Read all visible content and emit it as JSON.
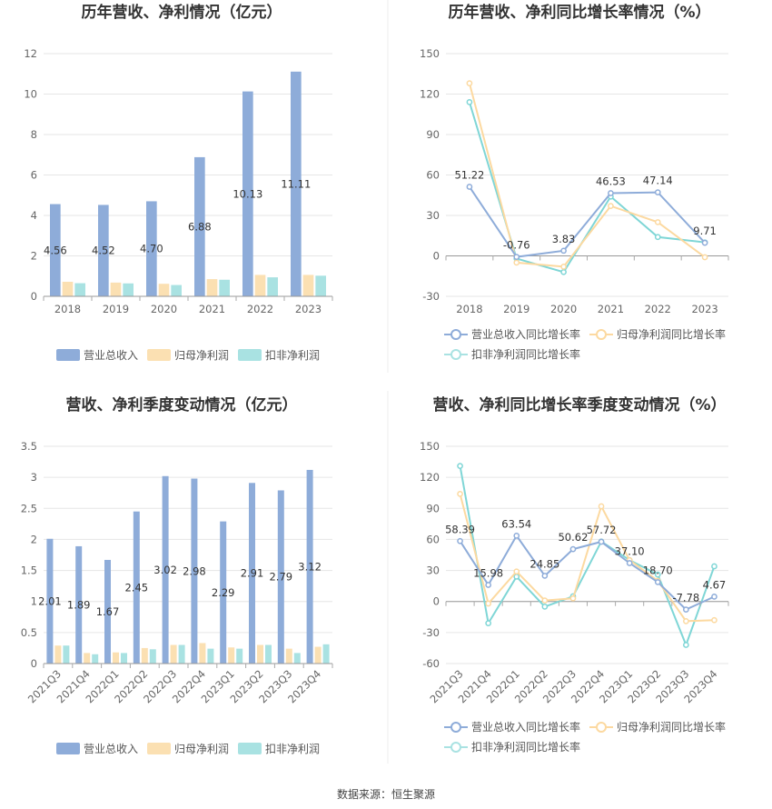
{
  "colors": {
    "revenue": "#8eacd9",
    "net_profit": "#fbe0b2",
    "deducted": "#a9e2e2",
    "revenue_line": "#8eacd9",
    "net_line": "#fcd9a0",
    "deducted_line": "#7fd6d6"
  },
  "legend": {
    "revenue": "营业总收入",
    "net_profit": "归母净利润",
    "deducted": "扣非净利润",
    "revenue_growth": "营业总收入同比增长率",
    "net_growth": "归母净利润同比增长率",
    "deducted_growth": "扣非净利润同比增长率"
  },
  "footer": {
    "source": "数据来源：恒生聚源"
  },
  "chart_data": [
    {
      "id": "annual-amount",
      "type": "bar",
      "title": "历年营收、净利情况（亿元）",
      "categories": [
        "2018",
        "2019",
        "2020",
        "2021",
        "2022",
        "2023"
      ],
      "ylim": [
        0,
        12
      ],
      "yticks": [
        0,
        2,
        4,
        6,
        8,
        10,
        12
      ],
      "series": [
        {
          "name": "营业总收入",
          "values": [
            4.56,
            4.52,
            4.7,
            6.88,
            10.13,
            11.11
          ],
          "labels": [
            "4.56",
            "4.52",
            "4.70",
            "6.88",
            "10.13",
            "11.11"
          ]
        },
        {
          "name": "归母净利润",
          "values": [
            0.72,
            0.68,
            0.62,
            0.85,
            1.06,
            1.06
          ]
        },
        {
          "name": "扣非净利润",
          "values": [
            0.65,
            0.64,
            0.56,
            0.82,
            0.94,
            1.02
          ]
        }
      ],
      "legend_position": "bottom"
    },
    {
      "id": "annual-growth",
      "type": "line",
      "title": "历年营收、净利同比增长率情况（%）",
      "categories": [
        "2018",
        "2019",
        "2020",
        "2021",
        "2022",
        "2023"
      ],
      "ylim": [
        -30,
        150
      ],
      "yticks": [
        -30,
        0,
        30,
        60,
        90,
        120,
        150
      ],
      "series": [
        {
          "name": "营业总收入同比增长率",
          "values": [
            51.22,
            -0.76,
            3.83,
            46.53,
            47.14,
            9.71
          ],
          "labels": [
            "51.22",
            "-0.76",
            "3.83",
            "46.53",
            "47.14",
            "9.71"
          ]
        },
        {
          "name": "归母净利润同比增长率",
          "values": [
            128,
            -5,
            -8,
            37,
            25,
            -1
          ]
        },
        {
          "name": "扣非净利润同比增长率",
          "values": [
            114,
            -2,
            -12,
            44,
            14,
            10
          ]
        }
      ],
      "legend_position": "bottom"
    },
    {
      "id": "quarter-amount",
      "type": "bar",
      "title": "营收、净利季度变动情况（亿元）",
      "categories": [
        "2021Q3",
        "2021Q4",
        "2022Q1",
        "2022Q2",
        "2022Q3",
        "2022Q4",
        "2023Q1",
        "2023Q2",
        "2023Q3",
        "2023Q4"
      ],
      "ylim": [
        0,
        3.5
      ],
      "yticks": [
        0,
        0.5,
        1,
        1.5,
        2,
        2.5,
        3,
        3.5
      ],
      "ytick_labels": [
        "0",
        "0.5",
        "1",
        "1.5",
        "2",
        "2.5",
        "3",
        "3.5"
      ],
      "series": [
        {
          "name": "营业总收入",
          "values": [
            2.01,
            1.89,
            1.67,
            2.45,
            3.02,
            2.98,
            2.29,
            2.91,
            2.79,
            3.12
          ],
          "labels": [
            "2.01",
            "1.89",
            "1.67",
            "2.45",
            "3.02",
            "2.98",
            "2.29",
            "2.91",
            "2.79",
            "3.12"
          ]
        },
        {
          "name": "归母净利润",
          "values": [
            0.29,
            0.17,
            0.18,
            0.25,
            0.3,
            0.33,
            0.26,
            0.3,
            0.24,
            0.27
          ]
        },
        {
          "name": "扣非净利润",
          "values": [
            0.29,
            0.15,
            0.17,
            0.23,
            0.3,
            0.24,
            0.24,
            0.3,
            0.17,
            0.31
          ]
        }
      ],
      "legend_position": "bottom"
    },
    {
      "id": "quarter-growth",
      "type": "line",
      "title": "营收、净利同比增长率季度变动情况（%）",
      "categories": [
        "2021Q3",
        "2021Q4",
        "2022Q1",
        "2022Q2",
        "2022Q3",
        "2022Q4",
        "2023Q1",
        "2023Q2",
        "2023Q3",
        "2023Q4"
      ],
      "ylim": [
        -60,
        150
      ],
      "yticks": [
        -60,
        -30,
        0,
        30,
        60,
        90,
        120,
        150
      ],
      "series": [
        {
          "name": "营业总收入同比增长率",
          "values": [
            58.39,
            15.98,
            63.54,
            24.85,
            50.62,
            57.72,
            37.1,
            18.7,
            -7.78,
            4.67
          ],
          "labels": [
            "58.39",
            "15.98",
            "63.54",
            "24.85",
            "50.62",
            "57.72",
            "37.10",
            "18.70",
            "-7.78",
            "4.67"
          ]
        },
        {
          "name": "归母净利润同比增长率",
          "values": [
            104,
            -2,
            29,
            1,
            3,
            92,
            40,
            20,
            -19,
            -18
          ]
        },
        {
          "name": "扣非净利润同比增长率",
          "values": [
            131,
            -21,
            24,
            -5,
            5,
            58,
            40,
            26,
            -42,
            34
          ]
        }
      ],
      "legend_position": "bottom"
    }
  ]
}
